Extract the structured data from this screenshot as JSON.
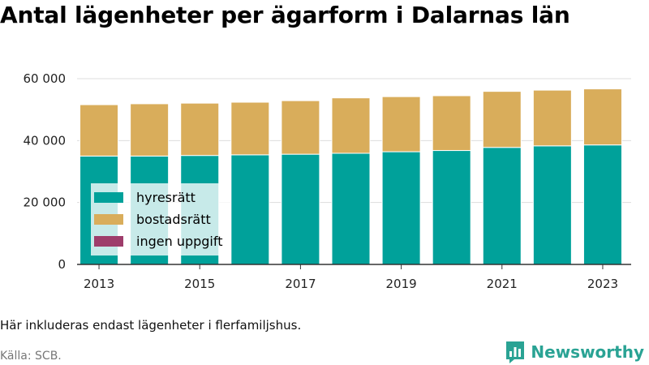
{
  "title": "Antal lägenheter per ägarform i Dalarnas län",
  "note": "Här inkluderas endast lägenheter i flerfamiljshus.",
  "source": "Källa: SCB.",
  "brand": {
    "name": "Newsworthy",
    "icon": "bar-chart-logo-icon"
  },
  "colors": {
    "hyresratt": "#00a19a",
    "bostadsratt": "#d9ad5b",
    "ingen_uppgift": "#9e3d6b"
  },
  "chart_data": {
    "type": "bar",
    "stacked": true,
    "categories": [
      "2013",
      "2014",
      "2015",
      "2016",
      "2017",
      "2018",
      "2019",
      "2020",
      "2021",
      "2022",
      "2023"
    ],
    "x_tick_labels": [
      "2013",
      "2015",
      "2017",
      "2019",
      "2021",
      "2023"
    ],
    "y_tick_labels": [
      "0",
      "20 000",
      "40 000",
      "60 000"
    ],
    "y_ticks": [
      0,
      20000,
      40000,
      60000
    ],
    "ylim": [
      0,
      62000
    ],
    "grid": true,
    "legend_position": "bottom-left",
    "series": [
      {
        "name": "hyresrätt",
        "color": "#00a19a",
        "values": [
          35000,
          35000,
          35200,
          35400,
          35600,
          35900,
          36400,
          36800,
          37800,
          38300,
          38600
        ]
      },
      {
        "name": "bostadsrätt",
        "color": "#d9ad5b",
        "values": [
          16600,
          16900,
          16900,
          17000,
          17300,
          17900,
          17800,
          17700,
          18100,
          18000,
          18100
        ]
      },
      {
        "name": "ingen uppgift",
        "color": "#9e3d6b",
        "values": [
          0,
          0,
          0,
          0,
          0,
          0,
          0,
          0,
          0,
          0,
          0
        ]
      }
    ]
  }
}
